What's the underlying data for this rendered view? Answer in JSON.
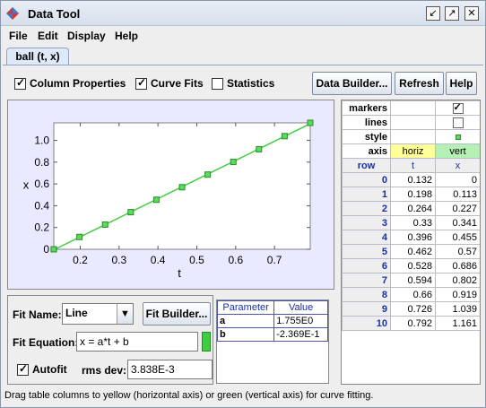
{
  "window": {
    "title": "Data Tool"
  },
  "menu": [
    "File",
    "Edit",
    "Display",
    "Help"
  ],
  "tab": {
    "label": "ball (t, x)"
  },
  "toolbar": {
    "column_properties": {
      "label": "Column Properties",
      "checked": true
    },
    "curve_fits": {
      "label": "Curve Fits",
      "checked": true
    },
    "statistics": {
      "label": "Statistics",
      "checked": false
    },
    "data_builder": "Data Builder...",
    "refresh": "Refresh",
    "help": "Help"
  },
  "chart_data": {
    "type": "scatter",
    "xlabel": "t",
    "ylabel": "x",
    "xlim": [
      0.132,
      0.792
    ],
    "ylim": [
      0,
      1.161
    ],
    "x_ticks": [
      "0.2",
      "0.3",
      "0.4",
      "0.5",
      "0.6",
      "0.7"
    ],
    "y_ticks": [
      "0",
      "0.2",
      "0.4",
      "0.6",
      "0.8",
      "1.0"
    ],
    "series": [
      {
        "x": [
          0.132,
          0.198,
          0.264,
          0.33,
          0.396,
          0.462,
          0.528,
          0.594,
          0.66,
          0.726,
          0.792
        ],
        "y": [
          0,
          0.113,
          0.227,
          0.341,
          0.455,
          0.57,
          0.686,
          0.802,
          0.919,
          1.039,
          1.161
        ]
      }
    ],
    "fit_line": {
      "a": 1.755,
      "b": -0.2369
    },
    "colors": {
      "marker": "#5adc5a",
      "marker_border": "#2b8a2b",
      "line": "#3ecf3e",
      "background": "#e9e9ff"
    }
  },
  "fit": {
    "name_label": "Fit Name:",
    "name_value": "Line",
    "builder": "Fit Builder...",
    "equation_label": "Fit Equation:",
    "equation_value": "x = a*t + b",
    "autofit_label": "Autofit",
    "autofit_checked": true,
    "rms_label": "rms dev:",
    "rms_value": "3.838E-3"
  },
  "parameters": {
    "headers": [
      "Parameter",
      "Value"
    ],
    "rows": [
      {
        "name": "a",
        "value": "1.755E0"
      },
      {
        "name": "b",
        "value": "-2.369E-1"
      }
    ]
  },
  "data_table": {
    "prop_labels": {
      "markers": "markers",
      "lines": "lines",
      "style": "style",
      "axis": "axis"
    },
    "markers": {
      "t": "",
      "x": true
    },
    "lines": {
      "t": "",
      "x": false
    },
    "axis": {
      "t": "horiz",
      "x": "vert"
    },
    "headers": [
      "row",
      "t",
      "x"
    ],
    "rows": [
      {
        "row": "0",
        "t": "0.132",
        "x": "0"
      },
      {
        "row": "1",
        "t": "0.198",
        "x": "0.113"
      },
      {
        "row": "2",
        "t": "0.264",
        "x": "0.227"
      },
      {
        "row": "3",
        "t": "0.33",
        "x": "0.341"
      },
      {
        "row": "4",
        "t": "0.396",
        "x": "0.455"
      },
      {
        "row": "5",
        "t": "0.462",
        "x": "0.57"
      },
      {
        "row": "6",
        "t": "0.528",
        "x": "0.686"
      },
      {
        "row": "7",
        "t": "0.594",
        "x": "0.802"
      },
      {
        "row": "8",
        "t": "0.66",
        "x": "0.919"
      },
      {
        "row": "9",
        "t": "0.726",
        "x": "1.039"
      },
      {
        "row": "10",
        "t": "0.792",
        "x": "1.161"
      }
    ],
    "colors": {
      "horiz": "#ffff99",
      "vert": "#b5f0b5"
    }
  },
  "status": "Drag table columns to yellow (horizontal axis) or green (vertical axis) for curve fitting."
}
